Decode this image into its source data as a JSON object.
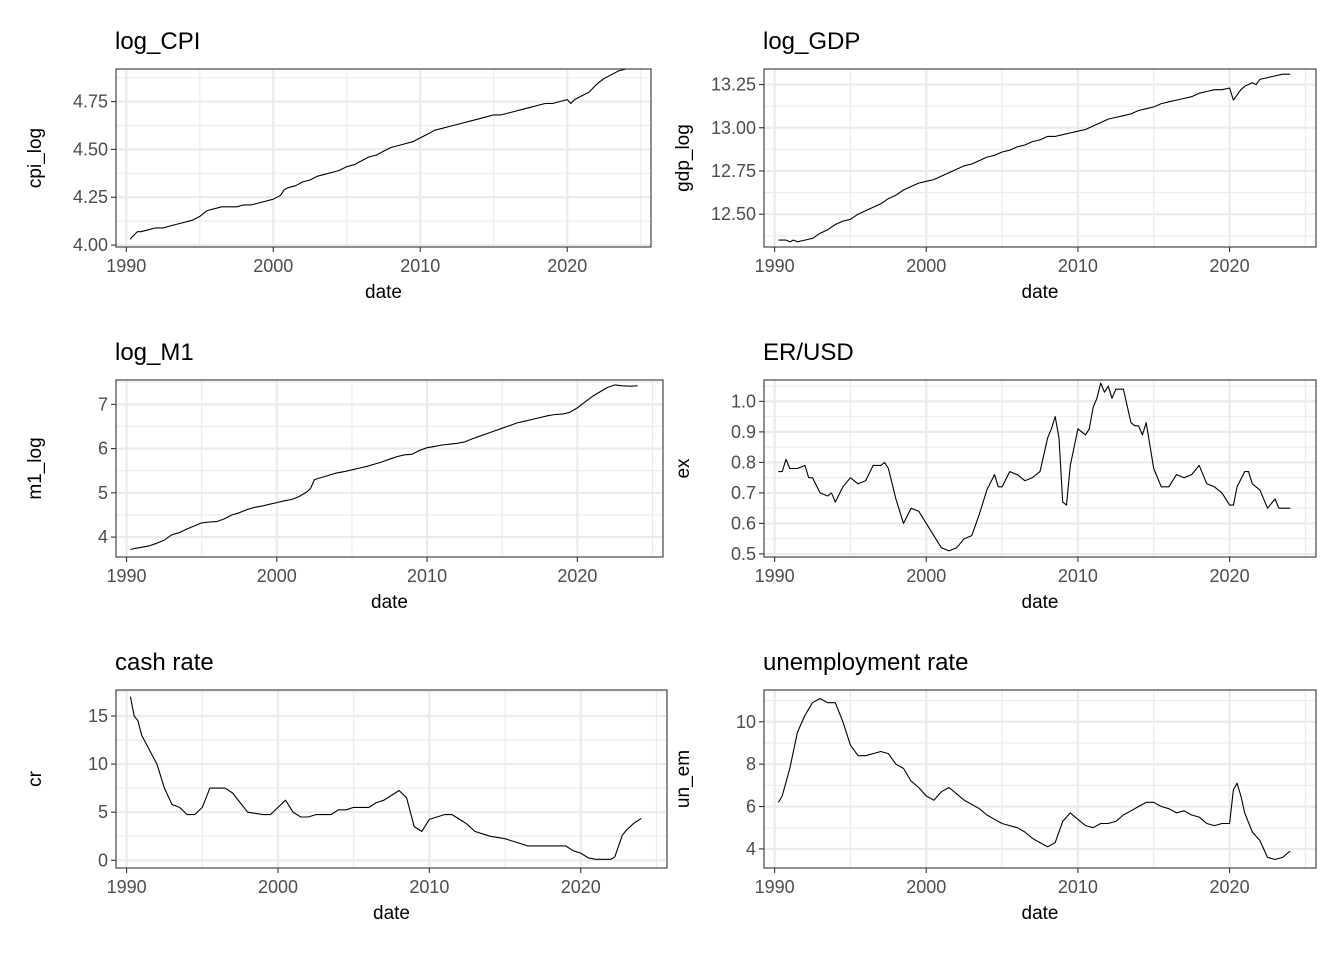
{
  "chart_data": [
    {
      "type": "line",
      "title": "log_CPI",
      "xlabel": "date",
      "ylabel": "cpi_log",
      "xlim": [
        1989.3,
        2025.7
      ],
      "ylim": [
        3.99,
        4.92
      ],
      "xticks": [
        1990,
        2000,
        2010,
        2020
      ],
      "xtick_labels": [
        "1990",
        "2000",
        "2010",
        "2020"
      ],
      "yticks": [
        4.0,
        4.25,
        4.5,
        4.75
      ],
      "ytick_labels": [
        "4.00",
        "4.25",
        "4.50",
        "4.75"
      ],
      "grid": true,
      "x": [
        1990.25,
        1990.5,
        1990.75,
        1991.0,
        1991.5,
        1992.0,
        1992.5,
        1993.0,
        1993.5,
        1994.0,
        1994.5,
        1995.0,
        1995.5,
        1996.0,
        1996.5,
        1997.0,
        1997.5,
        1998.0,
        1998.5,
        1999.0,
        1999.5,
        2000.0,
        2000.5,
        2000.75,
        2001.0,
        2001.5,
        2002.0,
        2002.5,
        2003.0,
        2003.5,
        2004.0,
        2004.5,
        2005.0,
        2005.5,
        2006.0,
        2006.5,
        2007.0,
        2007.5,
        2008.0,
        2008.5,
        2009.0,
        2009.5,
        2010.0,
        2010.5,
        2011.0,
        2011.5,
        2012.0,
        2012.5,
        2013.0,
        2013.5,
        2014.0,
        2014.5,
        2015.0,
        2015.5,
        2016.0,
        2016.5,
        2017.0,
        2017.5,
        2018.0,
        2018.5,
        2019.0,
        2019.5,
        2020.0,
        2020.25,
        2020.5,
        2021.0,
        2021.5,
        2022.0,
        2022.5,
        2023.0,
        2023.5,
        2024.0
      ],
      "series": [
        {
          "name": "",
          "values": [
            4.03,
            4.05,
            4.07,
            4.07,
            4.08,
            4.09,
            4.09,
            4.1,
            4.11,
            4.12,
            4.13,
            4.15,
            4.18,
            4.19,
            4.2,
            4.2,
            4.2,
            4.21,
            4.21,
            4.22,
            4.23,
            4.24,
            4.26,
            4.29,
            4.3,
            4.31,
            4.33,
            4.34,
            4.36,
            4.37,
            4.38,
            4.39,
            4.41,
            4.42,
            4.44,
            4.46,
            4.47,
            4.49,
            4.51,
            4.52,
            4.53,
            4.54,
            4.56,
            4.58,
            4.6,
            4.61,
            4.62,
            4.63,
            4.64,
            4.65,
            4.66,
            4.67,
            4.68,
            4.68,
            4.69,
            4.7,
            4.71,
            4.72,
            4.73,
            4.74,
            4.74,
            4.75,
            4.76,
            4.74,
            4.76,
            4.78,
            4.8,
            4.84,
            4.87,
            4.89,
            4.91,
            4.92
          ]
        }
      ]
    },
    {
      "type": "line",
      "title": "log_GDP",
      "xlabel": "date",
      "ylabel": "gdp_log",
      "xlim": [
        1989.3,
        2025.7
      ],
      "ylim": [
        12.31,
        13.34
      ],
      "xticks": [
        1990,
        2000,
        2010,
        2020
      ],
      "xtick_labels": [
        "1990",
        "2000",
        "2010",
        "2020"
      ],
      "yticks": [
        12.5,
        12.75,
        13.0,
        13.25
      ],
      "ytick_labels": [
        "12.50",
        "12.75",
        "13.00",
        "13.25"
      ],
      "grid": true,
      "x": [
        1990.25,
        1990.75,
        1991.0,
        1991.25,
        1991.5,
        1992.0,
        1992.5,
        1993.0,
        1993.5,
        1994.0,
        1994.5,
        1995.0,
        1995.5,
        1996.0,
        1996.5,
        1997.0,
        1997.5,
        1998.0,
        1998.5,
        1999.0,
        1999.5,
        2000.0,
        2000.5,
        2001.0,
        2001.5,
        2002.0,
        2002.5,
        2003.0,
        2003.5,
        2004.0,
        2004.5,
        2005.0,
        2005.5,
        2006.0,
        2006.5,
        2007.0,
        2007.5,
        2008.0,
        2008.5,
        2009.0,
        2009.5,
        2010.0,
        2010.5,
        2011.0,
        2011.5,
        2012.0,
        2012.5,
        2013.0,
        2013.5,
        2014.0,
        2014.5,
        2015.0,
        2015.5,
        2016.0,
        2016.5,
        2017.0,
        2017.5,
        2018.0,
        2018.5,
        2019.0,
        2019.5,
        2020.0,
        2020.25,
        2020.5,
        2020.75,
        2021.0,
        2021.5,
        2021.75,
        2022.0,
        2022.5,
        2023.0,
        2023.5,
        2024.0
      ],
      "series": [
        {
          "name": "",
          "values": [
            12.35,
            12.35,
            12.34,
            12.35,
            12.34,
            12.35,
            12.36,
            12.39,
            12.41,
            12.44,
            12.46,
            12.47,
            12.5,
            12.52,
            12.54,
            12.56,
            12.59,
            12.61,
            12.64,
            12.66,
            12.68,
            12.69,
            12.7,
            12.72,
            12.74,
            12.76,
            12.78,
            12.79,
            12.81,
            12.83,
            12.84,
            12.86,
            12.87,
            12.89,
            12.9,
            12.92,
            12.93,
            12.95,
            12.95,
            12.96,
            12.97,
            12.98,
            12.99,
            13.01,
            13.03,
            13.05,
            13.06,
            13.07,
            13.08,
            13.1,
            13.11,
            13.12,
            13.14,
            13.15,
            13.16,
            13.17,
            13.18,
            13.2,
            13.21,
            13.22,
            13.22,
            13.23,
            13.16,
            13.19,
            13.22,
            13.24,
            13.26,
            13.25,
            13.28,
            13.29,
            13.3,
            13.31,
            13.31
          ]
        }
      ]
    },
    {
      "type": "line",
      "title": "log_M1",
      "xlabel": "date",
      "ylabel": "m1_log",
      "xlim": [
        1989.3,
        2025.7
      ],
      "ylim": [
        3.55,
        7.55
      ],
      "xticks": [
        1990,
        2000,
        2010,
        2020
      ],
      "xtick_labels": [
        "1990",
        "2000",
        "2010",
        "2020"
      ],
      "yticks": [
        4,
        5,
        6,
        7
      ],
      "ytick_labels": [
        "4",
        "5",
        "6",
        "7"
      ],
      "grid": true,
      "x": [
        1990.25,
        1990.5,
        1991.0,
        1991.5,
        1992.0,
        1992.5,
        1993.0,
        1993.5,
        1994.0,
        1994.5,
        1995.0,
        1995.5,
        1996.0,
        1996.5,
        1997.0,
        1997.5,
        1998.0,
        1998.5,
        1999.0,
        1999.5,
        2000.0,
        2000.5,
        2001.0,
        2001.5,
        2002.0,
        2002.25,
        2002.5,
        2003.0,
        2003.5,
        2004.0,
        2004.5,
        2005.0,
        2005.5,
        2006.0,
        2006.5,
        2007.0,
        2007.5,
        2008.0,
        2008.5,
        2009.0,
        2009.5,
        2010.0,
        2010.5,
        2011.0,
        2011.5,
        2012.0,
        2012.5,
        2013.0,
        2013.5,
        2014.0,
        2014.5,
        2015.0,
        2015.5,
        2016.0,
        2016.5,
        2017.0,
        2017.5,
        2018.0,
        2018.5,
        2019.0,
        2019.5,
        2020.0,
        2020.5,
        2021.0,
        2021.5,
        2022.0,
        2022.5,
        2023.0,
        2023.5,
        2024.0
      ],
      "series": [
        {
          "name": "",
          "values": [
            3.72,
            3.74,
            3.77,
            3.8,
            3.86,
            3.93,
            4.05,
            4.1,
            4.18,
            4.25,
            4.32,
            4.34,
            4.35,
            4.41,
            4.5,
            4.55,
            4.62,
            4.67,
            4.7,
            4.74,
            4.78,
            4.82,
            4.85,
            4.92,
            5.02,
            5.1,
            5.3,
            5.35,
            5.4,
            5.45,
            5.48,
            5.52,
            5.56,
            5.6,
            5.65,
            5.7,
            5.76,
            5.82,
            5.86,
            5.87,
            5.96,
            6.02,
            6.05,
            6.08,
            6.1,
            6.12,
            6.15,
            6.22,
            6.28,
            6.34,
            6.4,
            6.46,
            6.52,
            6.58,
            6.62,
            6.66,
            6.7,
            6.74,
            6.77,
            6.78,
            6.82,
            6.92,
            7.05,
            7.18,
            7.28,
            7.38,
            7.44,
            7.42,
            7.41,
            7.42
          ]
        }
      ]
    },
    {
      "type": "line",
      "title": "ER/USD",
      "xlabel": "date",
      "ylabel": "ex",
      "xlim": [
        1989.3,
        2025.7
      ],
      "ylim": [
        0.49,
        1.07
      ],
      "xticks": [
        1990,
        2000,
        2010,
        2020
      ],
      "xtick_labels": [
        "1990",
        "2000",
        "2010",
        "2020"
      ],
      "yticks": [
        0.5,
        0.6,
        0.7,
        0.8,
        0.9,
        1.0
      ],
      "ytick_labels": [
        "0.5",
        "0.6",
        "0.7",
        "0.8",
        "0.9",
        "1.0"
      ],
      "grid": true,
      "x": [
        1990.25,
        1990.5,
        1990.75,
        1991.0,
        1991.5,
        1992.0,
        1992.25,
        1992.5,
        1993.0,
        1993.5,
        1993.75,
        1994.0,
        1994.5,
        1995.0,
        1995.5,
        1996.0,
        1996.5,
        1997.0,
        1997.25,
        1997.5,
        1998.0,
        1998.5,
        1999.0,
        1999.5,
        2000.0,
        2000.5,
        2001.0,
        2001.5,
        2002.0,
        2002.5,
        2003.0,
        2003.5,
        2004.0,
        2004.5,
        2004.75,
        2005.0,
        2005.5,
        2006.0,
        2006.5,
        2007.0,
        2007.5,
        2008.0,
        2008.25,
        2008.5,
        2008.75,
        2009.0,
        2009.25,
        2009.5,
        2010.0,
        2010.5,
        2010.75,
        2011.0,
        2011.25,
        2011.5,
        2011.75,
        2012.0,
        2012.25,
        2012.5,
        2013.0,
        2013.5,
        2013.75,
        2014.0,
        2014.25,
        2014.5,
        2015.0,
        2015.5,
        2016.0,
        2016.5,
        2017.0,
        2017.5,
        2018.0,
        2018.5,
        2019.0,
        2019.5,
        2020.0,
        2020.25,
        2020.5,
        2021.0,
        2021.25,
        2021.5,
        2022.0,
        2022.5,
        2023.0,
        2023.25,
        2023.5,
        2024.0
      ],
      "series": [
        {
          "name": "",
          "values": [
            0.77,
            0.77,
            0.81,
            0.78,
            0.78,
            0.79,
            0.75,
            0.75,
            0.7,
            0.69,
            0.7,
            0.67,
            0.72,
            0.75,
            0.73,
            0.74,
            0.79,
            0.79,
            0.8,
            0.78,
            0.68,
            0.6,
            0.65,
            0.64,
            0.6,
            0.56,
            0.52,
            0.51,
            0.52,
            0.55,
            0.56,
            0.63,
            0.71,
            0.76,
            0.72,
            0.72,
            0.77,
            0.76,
            0.74,
            0.75,
            0.77,
            0.88,
            0.91,
            0.95,
            0.88,
            0.67,
            0.66,
            0.79,
            0.91,
            0.89,
            0.91,
            0.98,
            1.01,
            1.06,
            1.03,
            1.05,
            1.01,
            1.04,
            1.04,
            0.93,
            0.92,
            0.92,
            0.89,
            0.93,
            0.78,
            0.72,
            0.72,
            0.76,
            0.75,
            0.76,
            0.79,
            0.73,
            0.72,
            0.7,
            0.66,
            0.66,
            0.72,
            0.77,
            0.77,
            0.73,
            0.71,
            0.65,
            0.68,
            0.65,
            0.65,
            0.65
          ]
        }
      ]
    },
    {
      "type": "line",
      "title": "cash rate",
      "xlabel": "date",
      "ylabel": "cr",
      "xlim": [
        1989.3,
        2025.7
      ],
      "ylim": [
        -0.8,
        17.7
      ],
      "xticks": [
        1990,
        2000,
        2010,
        2020
      ],
      "xtick_labels": [
        "1990",
        "2000",
        "2010",
        "2020"
      ],
      "yticks": [
        0,
        5,
        10,
        15
      ],
      "ytick_labels": [
        "0",
        "5",
        "10",
        "15"
      ],
      "grid": true,
      "x": [
        1990.25,
        1990.5,
        1990.75,
        1991.0,
        1991.5,
        1992.0,
        1992.5,
        1993.0,
        1993.5,
        1994.0,
        1994.5,
        1995.0,
        1995.5,
        1996.0,
        1996.5,
        1997.0,
        1997.5,
        1998.0,
        1999.0,
        1999.5,
        2000.0,
        2000.5,
        2001.0,
        2001.5,
        2002.0,
        2002.5,
        2003.0,
        2003.5,
        2004.0,
        2004.5,
        2005.0,
        2006.0,
        2006.5,
        2007.0,
        2007.5,
        2008.0,
        2008.5,
        2009.0,
        2009.5,
        2010.0,
        2010.5,
        2011.0,
        2011.5,
        2012.0,
        2012.5,
        2013.0,
        2013.5,
        2014.0,
        2015.0,
        2015.5,
        2016.0,
        2016.5,
        2017.0,
        2019.0,
        2019.5,
        2020.0,
        2020.5,
        2021.0,
        2022.0,
        2022.25,
        2022.5,
        2022.75,
        2023.0,
        2023.5,
        2024.0
      ],
      "series": [
        {
          "name": "",
          "values": [
            17.0,
            15.0,
            14.5,
            13.0,
            11.5,
            10.0,
            7.5,
            5.8,
            5.5,
            4.75,
            4.75,
            5.5,
            7.5,
            7.5,
            7.5,
            7.0,
            6.0,
            5.0,
            4.75,
            4.75,
            5.5,
            6.25,
            5.0,
            4.5,
            4.5,
            4.75,
            4.75,
            4.75,
            5.25,
            5.25,
            5.5,
            5.5,
            6.0,
            6.25,
            6.75,
            7.25,
            6.5,
            3.5,
            3.0,
            4.25,
            4.5,
            4.75,
            4.75,
            4.25,
            3.75,
            3.0,
            2.75,
            2.5,
            2.25,
            2.0,
            1.75,
            1.5,
            1.5,
            1.5,
            1.0,
            0.75,
            0.25,
            0.1,
            0.1,
            0.35,
            1.5,
            2.6,
            3.1,
            3.85,
            4.35
          ]
        }
      ]
    },
    {
      "type": "line",
      "title": "unemployment rate",
      "xlabel": "date",
      "ylabel": "un_em",
      "xlim": [
        1989.3,
        2025.7
      ],
      "ylim": [
        3.1,
        11.5
      ],
      "xticks": [
        1990,
        2000,
        2010,
        2020
      ],
      "xtick_labels": [
        "1990",
        "2000",
        "2010",
        "2020"
      ],
      "yticks": [
        4,
        6,
        8,
        10
      ],
      "ytick_labels": [
        "4",
        "6",
        "8",
        "10"
      ],
      "grid": true,
      "x": [
        1990.25,
        1990.5,
        1991.0,
        1991.5,
        1992.0,
        1992.5,
        1993.0,
        1993.5,
        1994.0,
        1994.5,
        1995.0,
        1995.5,
        1996.0,
        1996.5,
        1997.0,
        1997.5,
        1998.0,
        1998.5,
        1999.0,
        1999.5,
        2000.0,
        2000.5,
        2001.0,
        2001.5,
        2002.0,
        2002.5,
        2003.0,
        2003.5,
        2004.0,
        2004.5,
        2005.0,
        2005.5,
        2006.0,
        2006.5,
        2007.0,
        2007.5,
        2008.0,
        2008.5,
        2009.0,
        2009.5,
        2010.0,
        2010.5,
        2011.0,
        2011.5,
        2012.0,
        2012.5,
        2013.0,
        2013.5,
        2014.0,
        2014.5,
        2015.0,
        2015.5,
        2016.0,
        2016.5,
        2017.0,
        2017.5,
        2018.0,
        2018.5,
        2019.0,
        2019.5,
        2020.0,
        2020.25,
        2020.5,
        2020.75,
        2021.0,
        2021.5,
        2022.0,
        2022.5,
        2023.0,
        2023.5,
        2024.0
      ],
      "series": [
        {
          "name": "",
          "values": [
            6.2,
            6.5,
            7.8,
            9.5,
            10.3,
            10.9,
            11.1,
            10.9,
            10.9,
            10.0,
            8.9,
            8.4,
            8.4,
            8.5,
            8.6,
            8.5,
            8.0,
            7.8,
            7.2,
            6.9,
            6.5,
            6.3,
            6.7,
            6.9,
            6.6,
            6.3,
            6.1,
            5.9,
            5.6,
            5.4,
            5.2,
            5.1,
            5.0,
            4.8,
            4.5,
            4.3,
            4.1,
            4.3,
            5.3,
            5.7,
            5.4,
            5.1,
            5.0,
            5.2,
            5.2,
            5.3,
            5.6,
            5.8,
            6.0,
            6.2,
            6.2,
            6.0,
            5.9,
            5.7,
            5.8,
            5.6,
            5.5,
            5.2,
            5.1,
            5.2,
            5.2,
            6.8,
            7.1,
            6.5,
            5.7,
            4.8,
            4.4,
            3.6,
            3.5,
            3.6,
            3.9
          ]
        }
      ]
    }
  ]
}
